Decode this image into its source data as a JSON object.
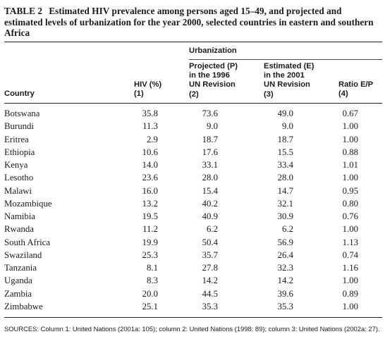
{
  "caption": {
    "label": "TABLE 2",
    "text": "Estimated HIV prevalence among persons aged 15–49, and projected and estimated levels of urbanization for the year 2000, selected countries in eastern and southern Africa"
  },
  "headers": {
    "group": "Urbanization",
    "country": "Country",
    "hiv": "HIV (%)\n(1)",
    "projected": "Projected (P)\nin the 1996\nUN Revision\n(2)",
    "estimated": "Estimated (E)\nin the 2001\nUN Revision\n(3)",
    "ratio": "Ratio E/P\n(4)"
  },
  "rows": [
    {
      "country": "Botswana",
      "hiv": "35.8",
      "projected": "73.6",
      "estimated": "49.0",
      "ratio": "0.67"
    },
    {
      "country": "Burundi",
      "hiv": "11.3",
      "projected": "9.0",
      "estimated": "9.0",
      "ratio": "1.00"
    },
    {
      "country": "Eritrea",
      "hiv": "2.9",
      "projected": "18.7",
      "estimated": "18.7",
      "ratio": "1.00"
    },
    {
      "country": "Ethiopia",
      "hiv": "10.6",
      "projected": "17.6",
      "estimated": "15.5",
      "ratio": "0.88"
    },
    {
      "country": "Kenya",
      "hiv": "14.0",
      "projected": "33.1",
      "estimated": "33.4",
      "ratio": "1.01"
    },
    {
      "country": "Lesotho",
      "hiv": "23.6",
      "projected": "28.0",
      "estimated": "28.0",
      "ratio": "1.00"
    },
    {
      "country": "Malawi",
      "hiv": "16.0",
      "projected": "15.4",
      "estimated": "14.7",
      "ratio": "0.95"
    },
    {
      "country": "Mozambique",
      "hiv": "13.2",
      "projected": "40.2",
      "estimated": "32.1",
      "ratio": "0.80"
    },
    {
      "country": "Namibia",
      "hiv": "19.5",
      "projected": "40.9",
      "estimated": "30.9",
      "ratio": "0.76"
    },
    {
      "country": "Rwanda",
      "hiv": "11.2",
      "projected": "6.2",
      "estimated": "6.2",
      "ratio": "1.00"
    },
    {
      "country": "South Africa",
      "hiv": "19.9",
      "projected": "50.4",
      "estimated": "56.9",
      "ratio": "1.13"
    },
    {
      "country": "Swaziland",
      "hiv": "25.3",
      "projected": "35.7",
      "estimated": "26.4",
      "ratio": "0.74"
    },
    {
      "country": "Tanzania",
      "hiv": "8.1",
      "projected": "27.8",
      "estimated": "32.3",
      "ratio": "1.16"
    },
    {
      "country": "Uganda",
      "hiv": "8.3",
      "projected": "14.2",
      "estimated": "14.2",
      "ratio": "1.00"
    },
    {
      "country": "Zambia",
      "hiv": "20.0",
      "projected": "44.5",
      "estimated": "39.6",
      "ratio": "0.89"
    },
    {
      "country": "Zimbabwe",
      "hiv": "25.1",
      "projected": "35.3",
      "estimated": "35.3",
      "ratio": "1.00"
    }
  ],
  "sources": "SOURCES: Column 1: United Nations (2001a: 105); column 2: United Nations (1998: 89); column 3: United Nations (2002a: 27)."
}
